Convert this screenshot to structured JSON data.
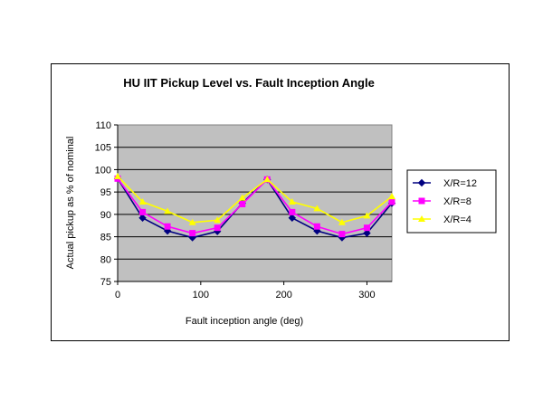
{
  "chart_data": {
    "type": "line",
    "title": "HU IIT Pickup Level vs. Fault Inception Angle",
    "xlabel": "Fault inception angle (deg)",
    "ylabel": "Actual pickup as % of nominal",
    "xlim": [
      0,
      330
    ],
    "ylim": [
      75,
      110
    ],
    "x_ticks": [
      "0",
      "100",
      "200",
      "300"
    ],
    "y_ticks": [
      "75",
      "80",
      "85",
      "90",
      "95",
      "100",
      "105",
      "110"
    ],
    "x": [
      0,
      30,
      60,
      90,
      120,
      150,
      180,
      210,
      240,
      270,
      300,
      330
    ],
    "grid": "horizontal",
    "plot_background": "#c0c0c0",
    "legend_position": "right",
    "series": [
      {
        "name": "X/R=12",
        "color": "#000080",
        "marker": "diamond",
        "values": [
          98,
          89.2,
          86.3,
          84.8,
          86.2,
          92.5,
          97.8,
          89.2,
          86.3,
          84.8,
          85.8,
          92.5
        ]
      },
      {
        "name": "X/R=8",
        "color": "#ff00ff",
        "marker": "square",
        "values": [
          98,
          90.5,
          87.3,
          85.8,
          87,
          92.3,
          97.8,
          90.5,
          87.3,
          85.6,
          87,
          92.8
        ]
      },
      {
        "name": "X/R=4",
        "color": "#ffff00",
        "marker": "triangle",
        "values": [
          98.5,
          92.8,
          90.7,
          88.2,
          88.7,
          93.7,
          97.8,
          92.8,
          91.3,
          88.2,
          89.7,
          94
        ]
      }
    ]
  }
}
